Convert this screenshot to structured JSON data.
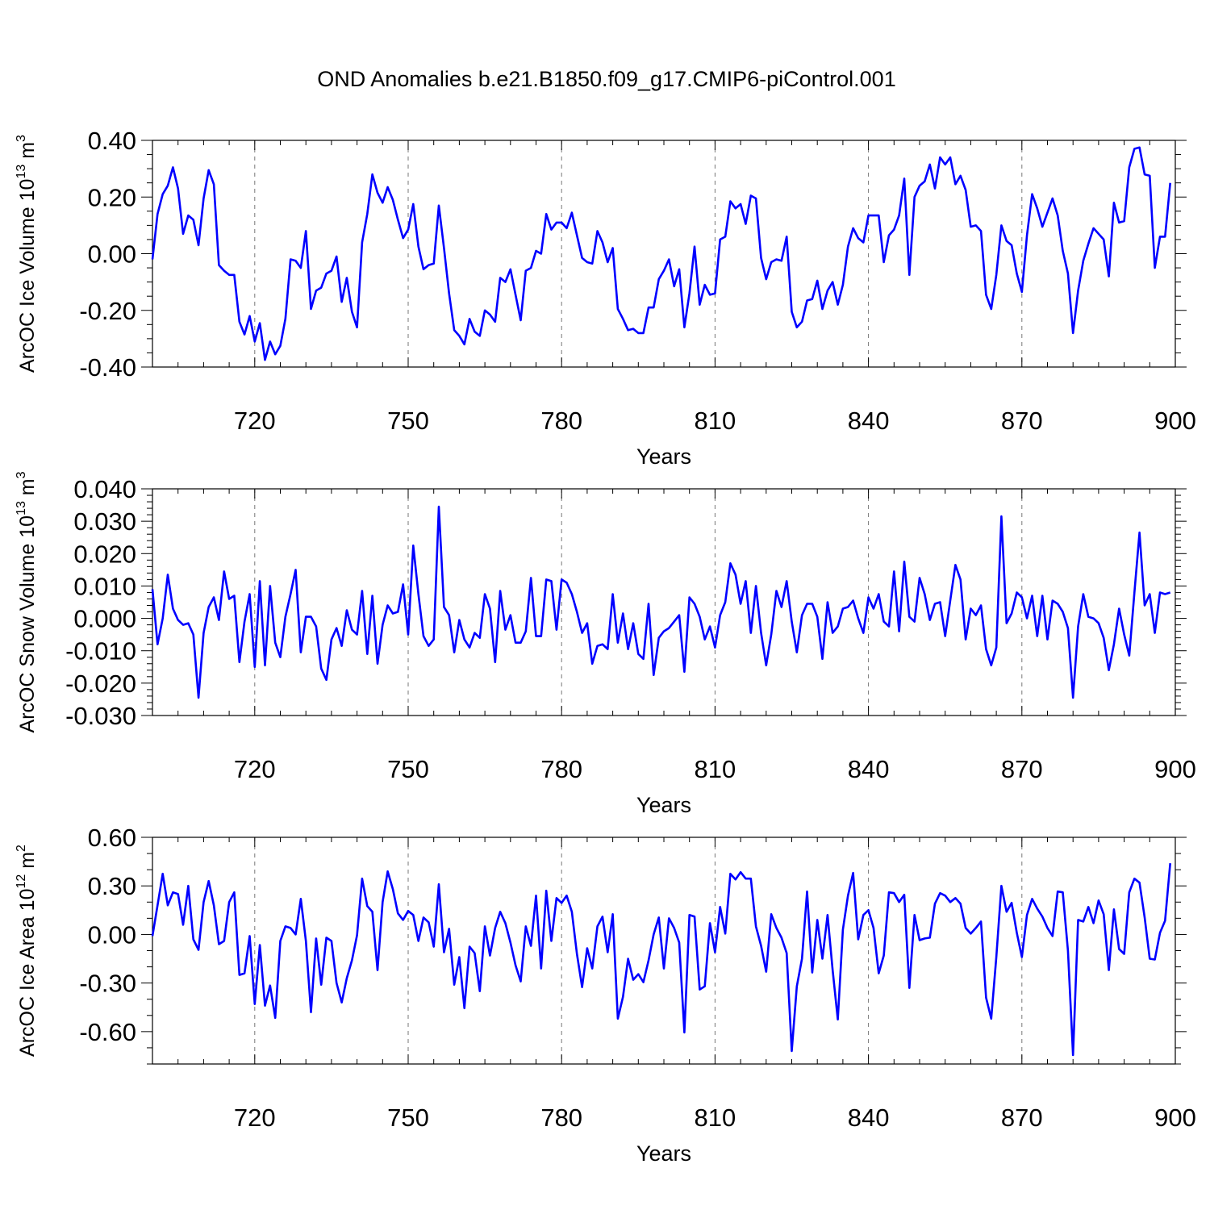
{
  "title": "OND Anomalies b.e21.B1850.f09_g17.CMIP6-piControl.001",
  "chart_data": [
    {
      "type": "line",
      "name": "ice-volume",
      "ylabel": "ArcOC Ice Volume 10",
      "ylabel_exp": "13",
      "ylabel_unit": " m",
      "ylabel_unit_exp": "3",
      "xlabel": "Years",
      "xlim": [
        700,
        900
      ],
      "ylim": [
        -0.4,
        0.4
      ],
      "xticks": [
        720,
        750,
        780,
        810,
        840,
        870,
        900
      ],
      "yticks": [
        -0.4,
        -0.2,
        0.0,
        0.2,
        0.4
      ],
      "yticklabels": [
        "-0.40",
        "-0.20",
        "0.00",
        "0.20",
        "0.40"
      ],
      "yminor": 0.05,
      "x_start": 700,
      "x_step": 1,
      "series": [
        {
          "name": "ArcOC Ice Volume",
          "color": "#0000ff",
          "values": [
            -0.02,
            0.14,
            0.21,
            0.24,
            0.305,
            0.23,
            0.07,
            0.135,
            0.12,
            0.03,
            0.195,
            0.295,
            0.245,
            -0.04,
            -0.06,
            -0.075,
            -0.075,
            -0.24,
            -0.285,
            -0.22,
            -0.31,
            -0.245,
            -0.375,
            -0.31,
            -0.355,
            -0.325,
            -0.23,
            -0.02,
            -0.025,
            -0.05,
            0.08,
            -0.195,
            -0.13,
            -0.12,
            -0.07,
            -0.06,
            -0.01,
            -0.17,
            -0.085,
            -0.205,
            -0.26,
            0.04,
            0.14,
            0.28,
            0.215,
            0.18,
            0.235,
            0.19,
            0.12,
            0.055,
            0.085,
            0.175,
            0.025,
            -0.055,
            -0.04,
            -0.035,
            0.17,
            0.02,
            -0.14,
            -0.27,
            -0.29,
            -0.32,
            -0.23,
            -0.275,
            -0.29,
            -0.2,
            -0.215,
            -0.24,
            -0.085,
            -0.1,
            -0.055,
            -0.145,
            -0.235,
            -0.06,
            -0.05,
            0.01,
            0.0,
            0.14,
            0.085,
            0.11,
            0.11,
            0.09,
            0.145,
            0.065,
            -0.015,
            -0.03,
            -0.035,
            0.08,
            0.04,
            -0.03,
            0.02,
            -0.195,
            -0.23,
            -0.27,
            -0.265,
            -0.28,
            -0.28,
            -0.19,
            -0.19,
            -0.09,
            -0.06,
            -0.02,
            -0.115,
            -0.055,
            -0.26,
            -0.14,
            0.025,
            -0.18,
            -0.11,
            -0.145,
            -0.14,
            0.05,
            0.06,
            0.185,
            0.16,
            0.175,
            0.105,
            0.205,
            0.195,
            -0.015,
            -0.09,
            -0.03,
            -0.02,
            -0.025,
            0.06,
            -0.205,
            -0.26,
            -0.24,
            -0.165,
            -0.16,
            -0.095,
            -0.195,
            -0.13,
            -0.1,
            -0.18,
            -0.11,
            0.025,
            0.09,
            0.055,
            0.04,
            0.135,
            0.135,
            0.135,
            -0.03,
            0.065,
            0.085,
            0.135,
            0.265,
            -0.075,
            0.2,
            0.24,
            0.255,
            0.315,
            0.23,
            0.34,
            0.315,
            0.34,
            0.245,
            0.275,
            0.225,
            0.095,
            0.1,
            0.08,
            -0.145,
            -0.195,
            -0.075,
            0.1,
            0.045,
            0.03,
            -0.07,
            -0.135,
            0.065,
            0.21,
            0.16,
            0.095,
            0.145,
            0.195,
            0.135,
            0.01,
            -0.07,
            -0.28,
            -0.13,
            -0.025,
            0.035,
            0.09,
            0.07,
            0.05,
            -0.08,
            0.18,
            0.11,
            0.115,
            0.305,
            0.37,
            0.375,
            0.28,
            0.275,
            -0.05,
            0.06,
            0.06,
            0.25
          ]
        }
      ]
    },
    {
      "type": "line",
      "name": "snow-volume",
      "ylabel": "ArcOC Snow Volume 10",
      "ylabel_exp": "13",
      "ylabel_unit": " m",
      "ylabel_unit_exp": "3",
      "xlabel": "Years",
      "xlim": [
        700,
        900
      ],
      "ylim": [
        -0.03,
        0.04
      ],
      "xticks": [
        720,
        750,
        780,
        810,
        840,
        870,
        900
      ],
      "yticks": [
        -0.03,
        -0.02,
        -0.01,
        0.0,
        0.01,
        0.02,
        0.03,
        0.04
      ],
      "yticklabels": [
        "-0.030",
        "-0.020",
        "-0.010",
        "0.000",
        "0.010",
        "0.020",
        "0.030",
        "0.040"
      ],
      "yminor": 0.002,
      "x_start": 700,
      "x_step": 1,
      "series": [
        {
          "name": "ArcOC Snow Volume",
          "color": "#0000ff",
          "values": [
            0.009,
            -0.008,
            0.0,
            0.0135,
            0.003,
            -0.0005,
            -0.002,
            -0.0015,
            -0.005,
            -0.0245,
            -0.0045,
            0.0035,
            0.0065,
            -0.0005,
            0.0145,
            0.006,
            0.007,
            -0.0135,
            -0.001,
            0.0075,
            -0.015,
            0.0115,
            -0.0145,
            0.01,
            -0.0075,
            -0.012,
            0.0005,
            0.0075,
            0.015,
            -0.0105,
            0.0005,
            0.0005,
            -0.0025,
            -0.0155,
            -0.019,
            -0.0065,
            -0.003,
            -0.0085,
            0.0025,
            -0.0035,
            -0.005,
            0.0085,
            -0.011,
            0.007,
            -0.014,
            -0.002,
            0.004,
            0.0015,
            0.002,
            0.0105,
            -0.005,
            0.0225,
            0.0075,
            -0.0055,
            -0.0085,
            -0.0065,
            0.0345,
            0.0035,
            0.001,
            -0.0105,
            -0.0005,
            -0.0065,
            -0.009,
            -0.0045,
            -0.006,
            0.0075,
            0.003,
            -0.0135,
            0.0085,
            -0.0035,
            0.001,
            -0.0075,
            -0.0075,
            -0.004,
            0.0125,
            -0.0055,
            -0.0055,
            0.012,
            0.0115,
            -0.0035,
            0.012,
            0.011,
            0.0075,
            0.002,
            -0.0045,
            -0.0015,
            -0.014,
            -0.0085,
            -0.008,
            -0.0095,
            0.0075,
            -0.0075,
            0.0015,
            -0.0095,
            -0.0015,
            -0.011,
            -0.0125,
            0.0045,
            -0.0175,
            -0.006,
            -0.004,
            -0.003,
            -0.001,
            0.001,
            -0.0165,
            0.0065,
            0.0045,
            0.0005,
            -0.0065,
            -0.0025,
            -0.009,
            0.001,
            0.005,
            0.017,
            0.0135,
            0.0045,
            0.0115,
            -0.0045,
            0.01,
            -0.0045,
            -0.0145,
            -0.005,
            0.0085,
            0.0035,
            0.0115,
            -0.001,
            -0.0105,
            0.001,
            0.0045,
            0.0045,
            0.0005,
            -0.0125,
            0.005,
            -0.0045,
            -0.0025,
            0.003,
            0.0035,
            0.0055,
            0.0,
            -0.0045,
            0.0065,
            0.003,
            0.0075,
            -0.001,
            -0.0025,
            0.0145,
            -0.004,
            0.0175,
            0.0005,
            -0.001,
            0.0125,
            0.0075,
            -0.0005,
            0.0045,
            0.005,
            -0.0055,
            0.0055,
            0.0165,
            0.012,
            -0.0065,
            0.003,
            0.001,
            0.004,
            -0.0095,
            -0.0145,
            -0.009,
            0.0315,
            -0.0015,
            0.0015,
            0.008,
            0.0065,
            0.0,
            0.007,
            -0.0055,
            0.007,
            -0.0065,
            0.0055,
            0.0045,
            0.002,
            -0.003,
            -0.0245,
            -0.0025,
            0.0075,
            0.0005,
            0.0,
            -0.0015,
            -0.006,
            -0.016,
            -0.008,
            0.003,
            -0.005,
            -0.0115,
            0.008,
            0.0265,
            0.004,
            0.0075,
            -0.0045,
            0.008,
            0.0075,
            0.008
          ]
        }
      ]
    },
    {
      "type": "line",
      "name": "ice-area",
      "ylabel": "ArcOC Ice Area 10",
      "ylabel_exp": "12",
      "ylabel_unit": " m",
      "ylabel_unit_exp": "2",
      "xlabel": "Years",
      "xlim": [
        700,
        900
      ],
      "ylim": [
        -0.8,
        0.6
      ],
      "xticks": [
        720,
        750,
        780,
        810,
        840,
        870,
        900
      ],
      "yticks": [
        -0.6,
        -0.3,
        0.0,
        0.3,
        0.6
      ],
      "yticklabels": [
        "-0.60",
        "-0.30",
        "0.00",
        "0.30",
        "0.60"
      ],
      "yminor": 0.1,
      "x_start": 700,
      "x_step": 1,
      "series": [
        {
          "name": "ArcOC Ice Area",
          "color": "#0000ff",
          "values": [
            -0.01,
            0.18,
            0.375,
            0.18,
            0.26,
            0.25,
            0.06,
            0.3,
            -0.03,
            -0.095,
            0.2,
            0.33,
            0.18,
            -0.06,
            -0.04,
            0.2,
            0.26,
            -0.25,
            -0.24,
            -0.01,
            -0.43,
            -0.065,
            -0.44,
            -0.315,
            -0.515,
            -0.04,
            0.05,
            0.04,
            0.0,
            0.22,
            -0.04,
            -0.48,
            -0.025,
            -0.31,
            -0.02,
            -0.04,
            -0.3,
            -0.42,
            -0.27,
            -0.16,
            -0.005,
            0.345,
            0.175,
            0.14,
            -0.22,
            0.2,
            0.39,
            0.28,
            0.13,
            0.09,
            0.145,
            0.12,
            -0.04,
            0.105,
            0.075,
            -0.075,
            0.31,
            -0.11,
            0.035,
            -0.31,
            -0.14,
            -0.455,
            -0.075,
            -0.115,
            -0.35,
            0.05,
            -0.13,
            0.04,
            0.14,
            0.07,
            -0.05,
            -0.19,
            -0.29,
            0.05,
            -0.07,
            0.24,
            -0.21,
            0.27,
            -0.04,
            0.225,
            0.195,
            0.24,
            0.14,
            -0.12,
            -0.325,
            -0.085,
            -0.21,
            0.05,
            0.11,
            -0.11,
            0.125,
            -0.52,
            -0.385,
            -0.15,
            -0.28,
            -0.245,
            -0.295,
            -0.16,
            0.0,
            0.105,
            -0.21,
            0.1,
            0.04,
            -0.05,
            -0.605,
            0.12,
            0.11,
            -0.34,
            -0.32,
            0.07,
            -0.11,
            0.17,
            0.005,
            0.375,
            0.34,
            0.385,
            0.345,
            0.345,
            0.05,
            -0.07,
            -0.23,
            0.125,
            0.04,
            -0.02,
            -0.115,
            -0.72,
            -0.32,
            -0.15,
            0.265,
            -0.235,
            0.09,
            -0.15,
            0.12,
            -0.22,
            -0.525,
            0.03,
            0.24,
            0.38,
            -0.03,
            0.12,
            0.15,
            0.04,
            -0.24,
            -0.13,
            0.26,
            0.255,
            0.2,
            0.245,
            -0.33,
            0.12,
            -0.035,
            -0.025,
            -0.02,
            0.19,
            0.255,
            0.24,
            0.2,
            0.225,
            0.19,
            0.04,
            0.005,
            0.04,
            0.08,
            -0.39,
            -0.52,
            -0.14,
            0.3,
            0.14,
            0.195,
            0.01,
            -0.14,
            0.12,
            0.22,
            0.16,
            0.11,
            0.04,
            -0.01,
            0.265,
            0.26,
            -0.1,
            -0.745,
            0.09,
            0.08,
            0.17,
            0.07,
            0.21,
            0.125,
            -0.22,
            0.155,
            -0.09,
            -0.12,
            0.26,
            0.345,
            0.32,
            0.105,
            -0.15,
            -0.155,
            0.01,
            0.085,
            0.44
          ]
        }
      ]
    }
  ]
}
